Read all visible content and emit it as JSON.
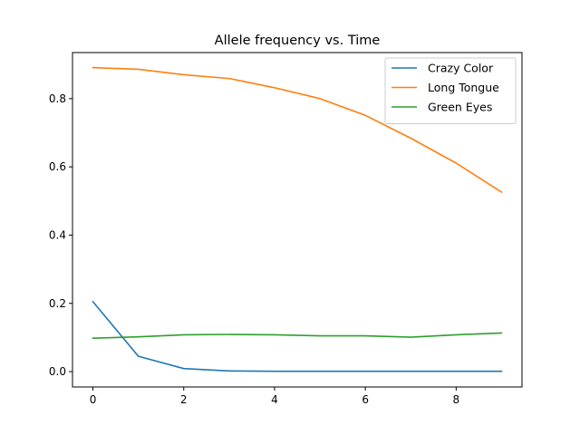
{
  "chart_data": {
    "type": "line",
    "title": "Allele frequency vs. Time",
    "xlabel": "",
    "ylabel": "",
    "xlim": [
      -0.45,
      9.45
    ],
    "ylim": [
      -0.045,
      0.935
    ],
    "xticks": [
      0,
      2,
      4,
      6,
      8
    ],
    "xtick_labels": [
      "0",
      "2",
      "4",
      "6",
      "8"
    ],
    "yticks": [
      0.0,
      0.2,
      0.4,
      0.6,
      0.8
    ],
    "ytick_labels": [
      "0.0",
      "0.2",
      "0.4",
      "0.6",
      "0.8"
    ],
    "grid": false,
    "legend_position": "top-right",
    "x": [
      0,
      1,
      2,
      3,
      4,
      5,
      6,
      7,
      8,
      9
    ],
    "series": [
      {
        "name": "Crazy Color",
        "color": "#1f77b4",
        "values": [
          0.205,
          0.045,
          0.009,
          0.002,
          0.001,
          0.001,
          0.001,
          0.001,
          0.001,
          0.001
        ]
      },
      {
        "name": "Long Tongue",
        "color": "#ff7f0e",
        "values": [
          0.891,
          0.886,
          0.87,
          0.859,
          0.832,
          0.8,
          0.751,
          0.684,
          0.611,
          0.526
        ]
      },
      {
        "name": "Green Eyes",
        "color": "#2ca02c",
        "values": [
          0.098,
          0.102,
          0.108,
          0.109,
          0.108,
          0.105,
          0.105,
          0.101,
          0.108,
          0.113
        ]
      }
    ]
  }
}
